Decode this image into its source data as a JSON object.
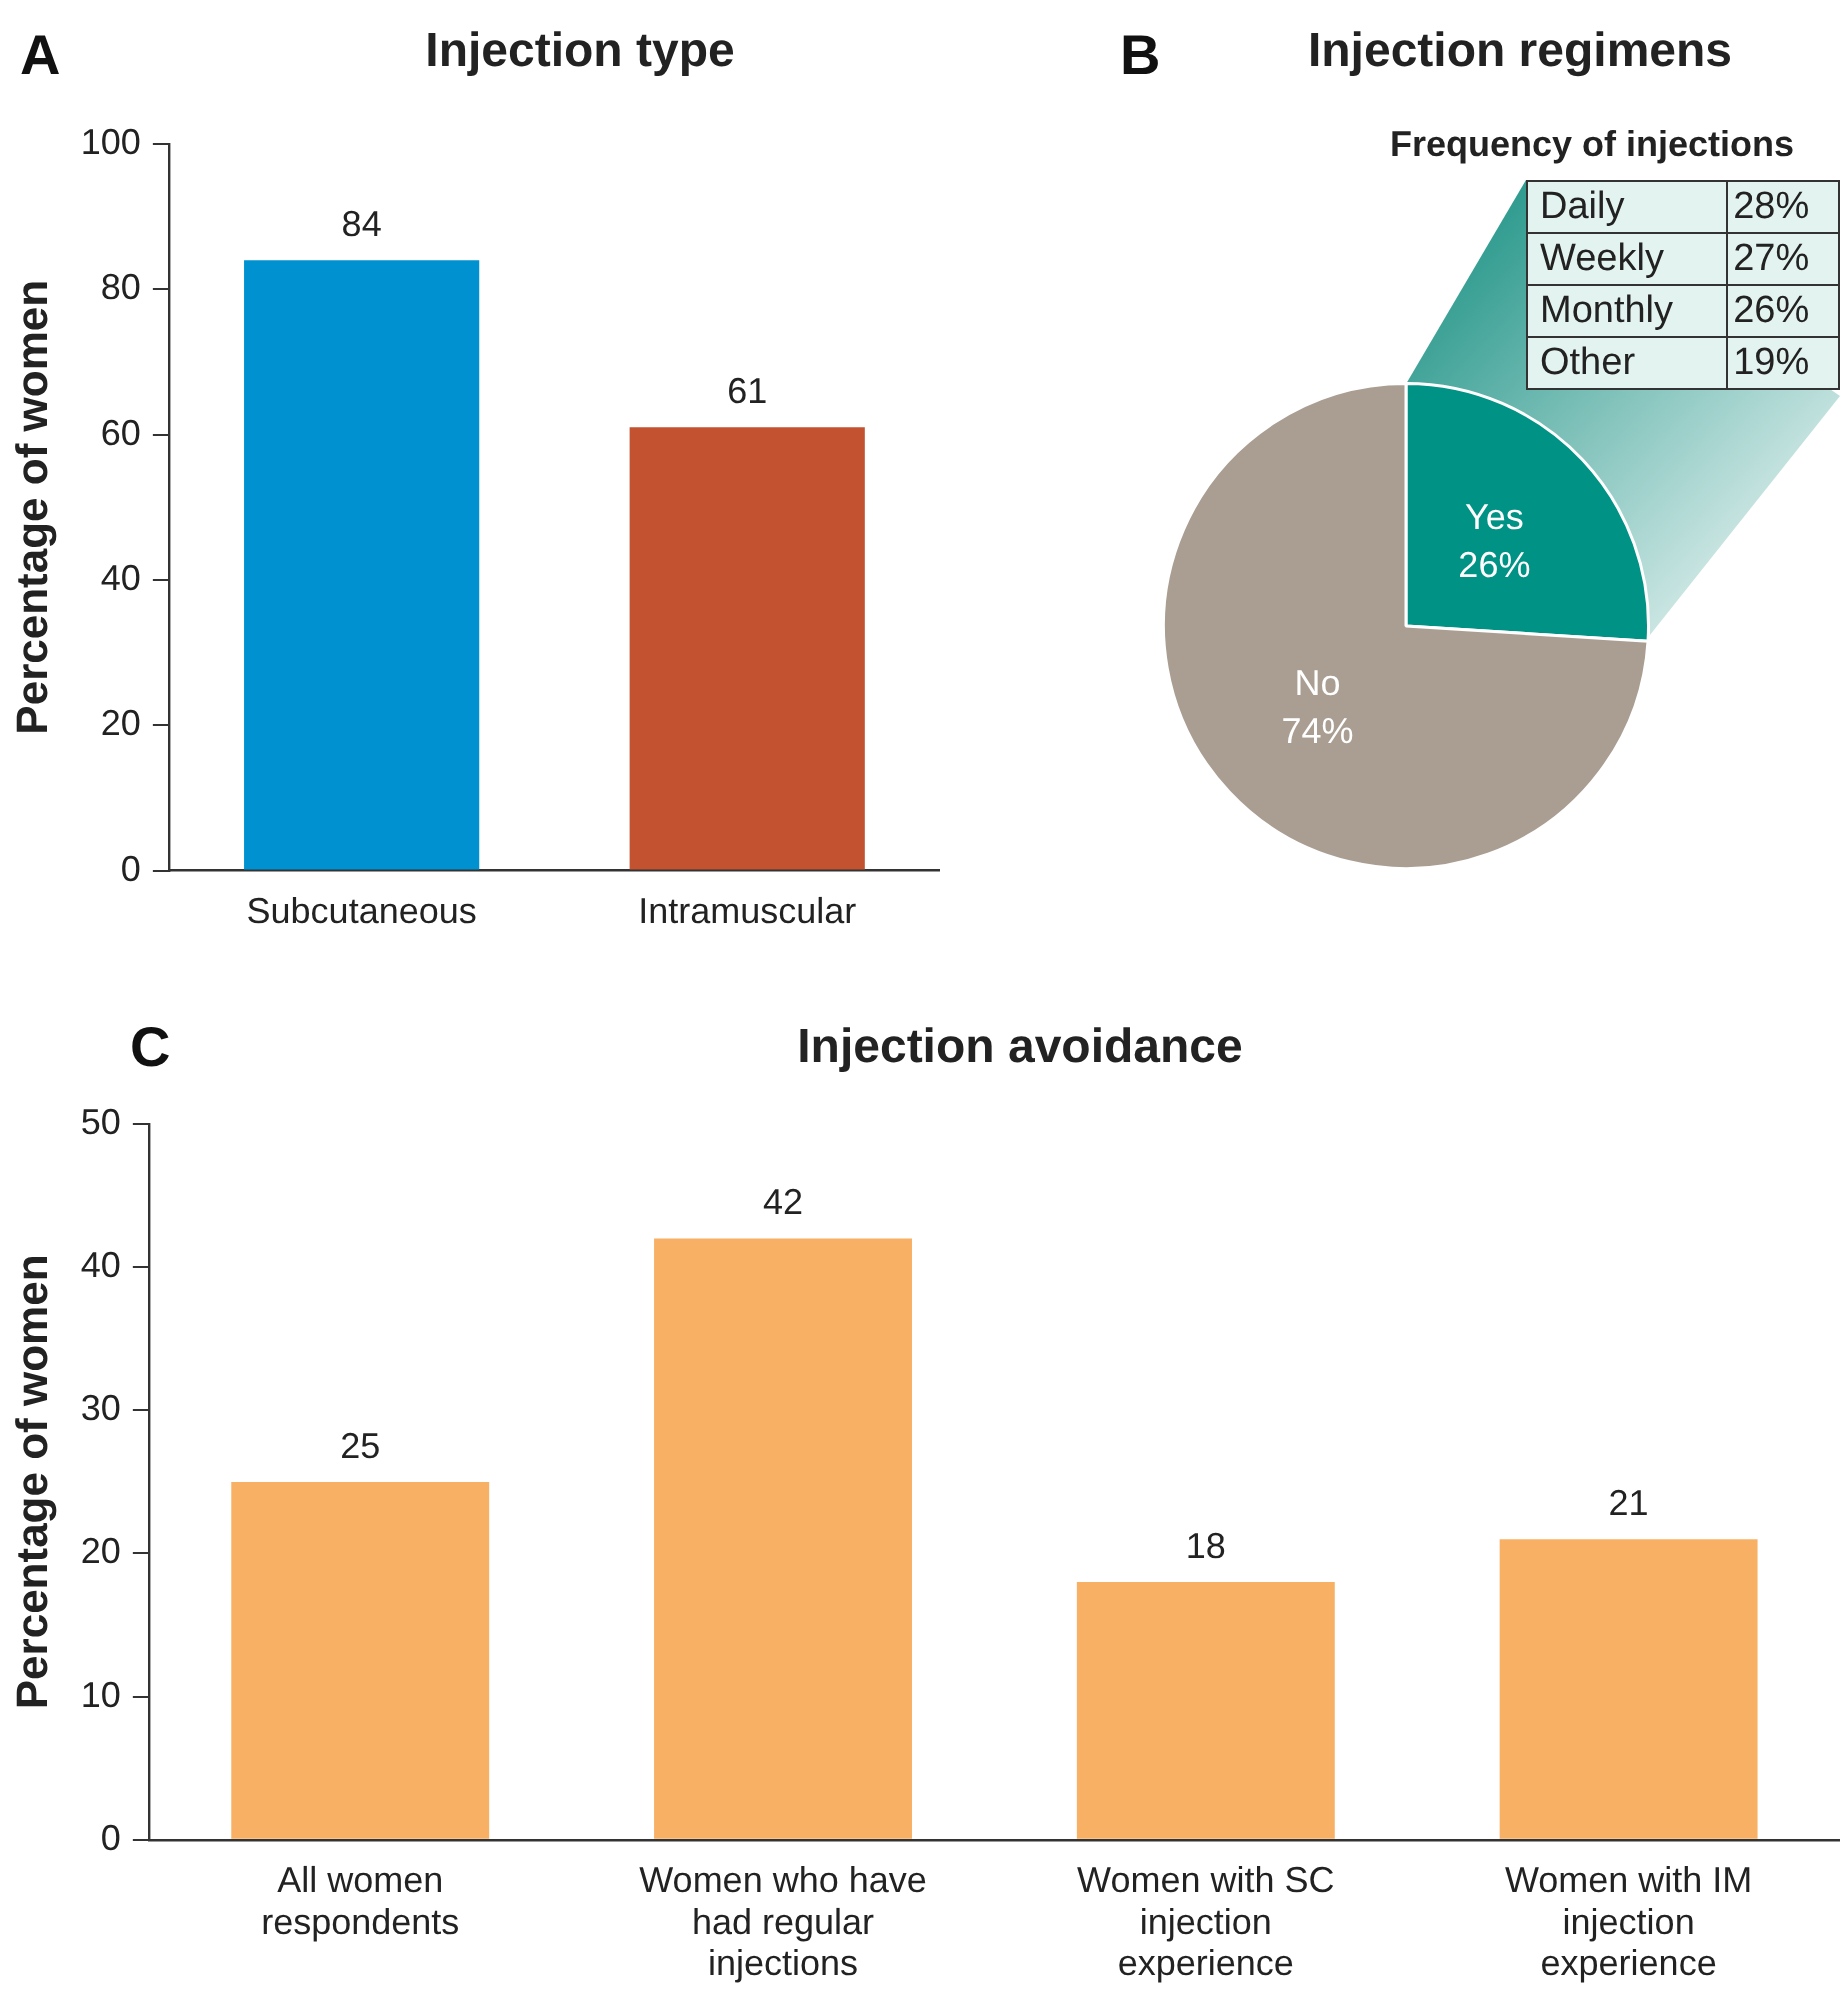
{
  "chart_data": [
    {
      "type": "bar",
      "title": "Injection type",
      "ylabel": "Percentage of women",
      "categories": [
        "Subcutaneous",
        "Intramuscular"
      ],
      "values": [
        84,
        61
      ],
      "colors": [
        "#0091d1",
        "#c25230"
      ],
      "ylim": [
        0,
        100
      ],
      "yticks": [
        0,
        20,
        40,
        60,
        80,
        100
      ],
      "data_labels": true,
      "grid": false,
      "legend": false,
      "annotations": [
        "A"
      ]
    },
    {
      "type": "pie",
      "title": "Injection regimens",
      "categories": [
        "Yes",
        "No"
      ],
      "values": [
        26,
        74
      ],
      "value_labels": [
        "26%",
        "74%"
      ],
      "colors": [
        "#009284",
        "#aa9e93"
      ],
      "legend": false,
      "annotations": [
        "B"
      ]
    },
    {
      "type": "other",
      "title": "Frequency of injections",
      "categories": [
        "Daily",
        "Weekly",
        "Monthly",
        "Other"
      ],
      "value_labels": [
        "28%",
        "27%",
        "26%",
        "19%"
      ],
      "color": "#e3f3ef"
    },
    {
      "type": "bar",
      "title": "Injection avoidance",
      "ylabel": "Percentage of women",
      "categories": [
        "All women respondents",
        "Women who have had regular injections",
        "Women with SC injection experience",
        "Women with IM injection experience"
      ],
      "values": [
        25,
        42,
        18,
        21
      ],
      "color": "#f8b064",
      "ylim": [
        0,
        50
      ],
      "yticks": [
        0,
        10,
        20,
        30,
        40,
        50
      ],
      "data_labels": true,
      "grid": false,
      "legend": false,
      "annotations": [
        "C"
      ]
    }
  ]
}
